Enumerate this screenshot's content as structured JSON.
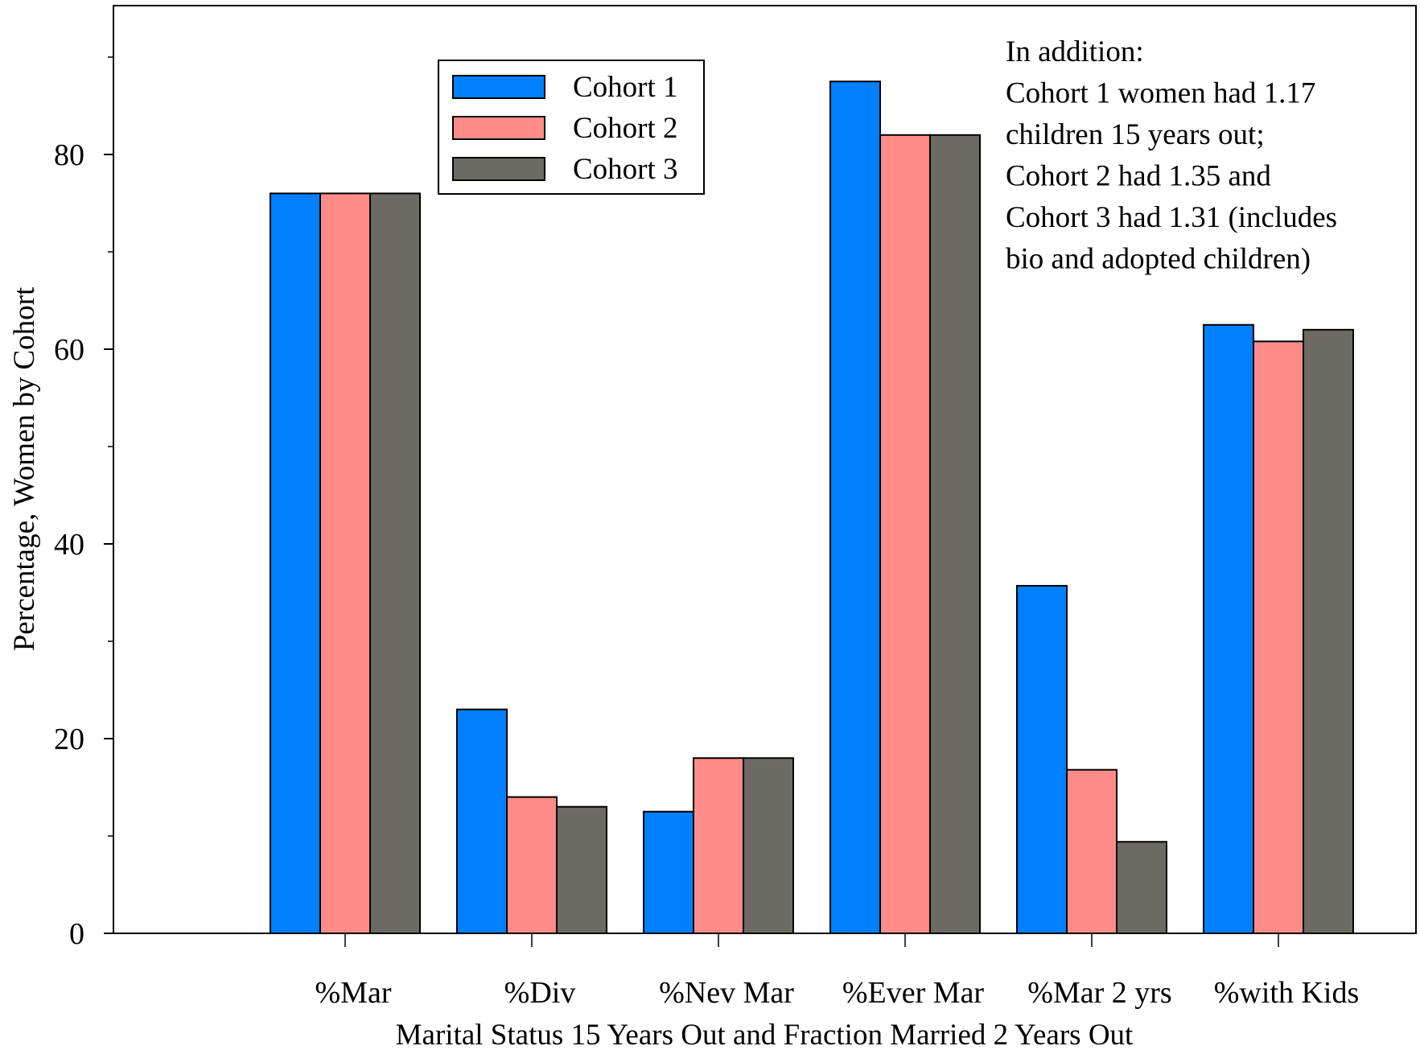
{
  "chart_data": {
    "type": "bar",
    "title": "",
    "xlabel": "Marital Status 15 Years Out and Fraction Married 2 Years Out",
    "ylabel": "Percentage, Women by Cohort",
    "categories": [
      "%Mar",
      "%Div",
      "%Nev Mar",
      "%Ever Mar",
      "%Mar 2 yrs",
      "%with Kids"
    ],
    "series": [
      {
        "name": "Cohort 1",
        "color": "#0080ff",
        "values": [
          76,
          23,
          12.5,
          87.5,
          35.7,
          62.5
        ]
      },
      {
        "name": "Cohort 2",
        "color": "#ff8c89",
        "values": [
          76,
          14,
          18,
          82,
          16.8,
          60.8
        ]
      },
      {
        "name": "Cohort 3",
        "color": "#6b6b63",
        "values": [
          76,
          13,
          18,
          82,
          9.4,
          62
        ]
      }
    ],
    "ylim": [
      0,
      95
    ],
    "yticks_major": [
      0,
      20,
      40,
      60,
      80
    ],
    "yticks_minor": [
      10,
      30,
      50,
      70,
      90
    ],
    "grid": false,
    "legend_position": "top-left",
    "annotation_lines": [
      "In addition:",
      "Cohort 1 women had 1.17",
      "children 15 years out;",
      "Cohort 2 had 1.35 and",
      "Cohort 3 had 1.31 (includes",
      "bio and adopted children)"
    ]
  }
}
